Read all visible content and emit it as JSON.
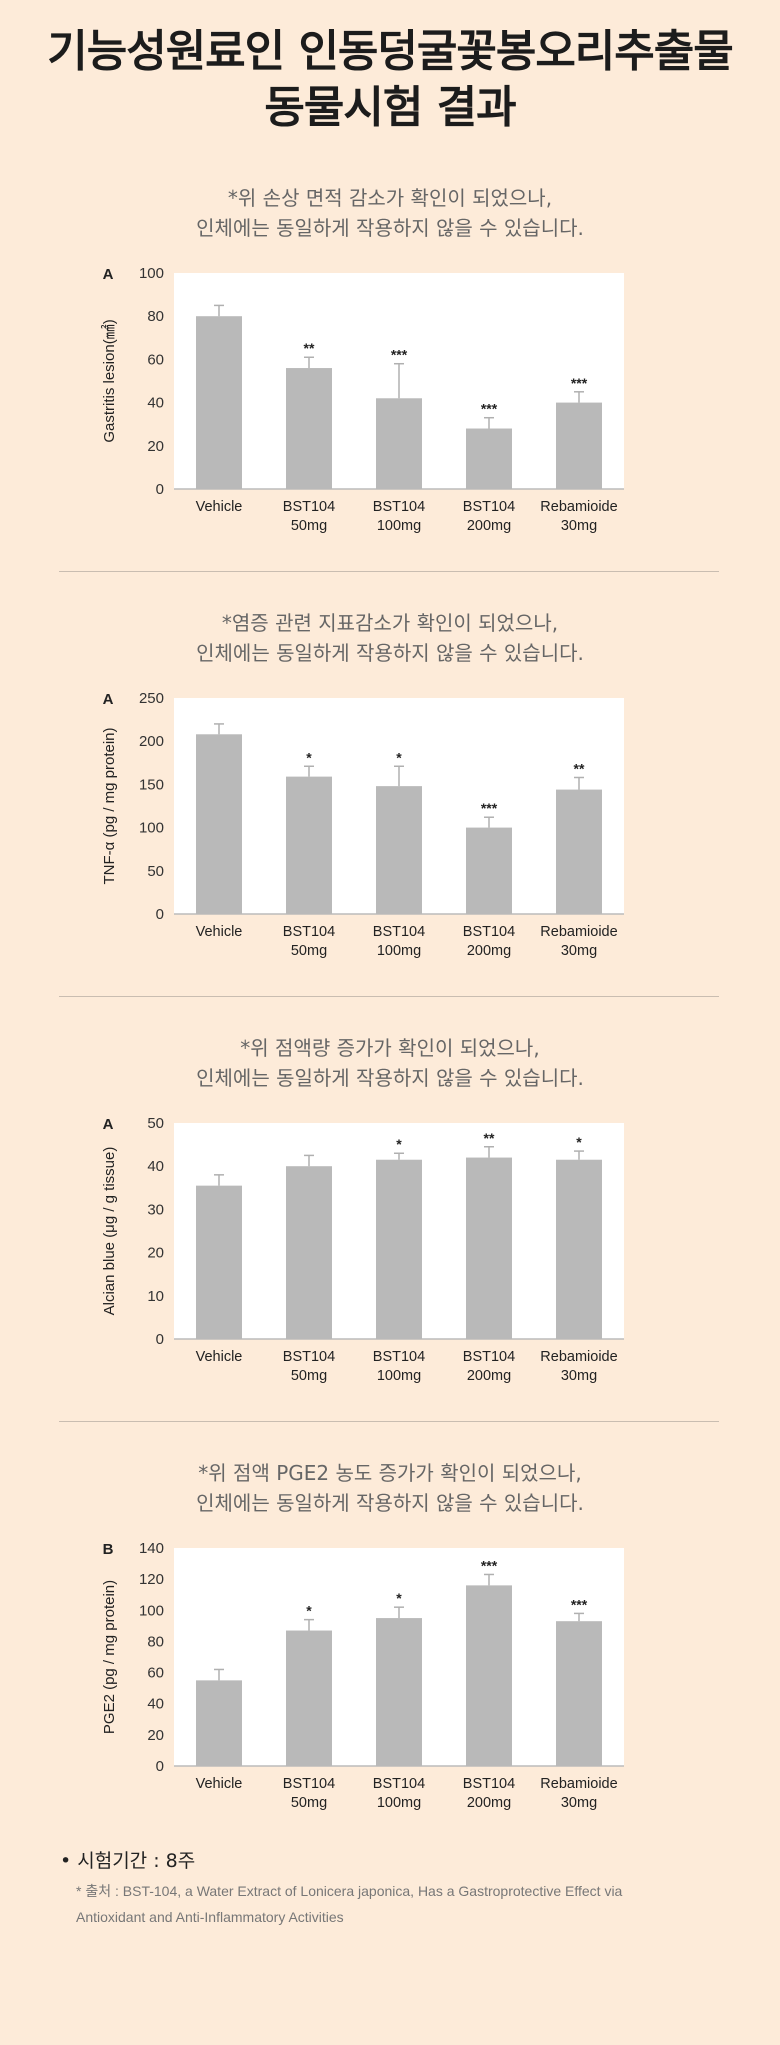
{
  "page": {
    "title_line1": "기능성원료인 인동덩굴꽃봉오리추출물",
    "title_line2": "동물시험 결과"
  },
  "sections": [
    {
      "note_line1": "*위 손상 면적 감소가 확인이 되었으나,",
      "note_line2": "인체에는 동일하게 작용하지 않을 수 있습니다."
    },
    {
      "note_line1": "*염증 관련 지표감소가 확인이 되었으나,",
      "note_line2": "인체에는 동일하게 작용하지 않을 수 있습니다."
    },
    {
      "note_line1": "*위 점액량 증가가 확인이 되었으나,",
      "note_line2": "인체에는 동일하게 작용하지 않을 수 있습니다."
    },
    {
      "note_line1": "*위 점액 PGE2 농도 증가가 확인이 되었으나,",
      "note_line2": "인체에는 동일하게 작용하지 않을 수 있습니다."
    }
  ],
  "chart_data": [
    {
      "type": "bar",
      "panel_label": "A",
      "ylabel": "Gastritis lesion(㎟)",
      "ylim": [
        0,
        100
      ],
      "yticks": [
        0,
        20,
        40,
        60,
        80,
        100
      ],
      "categories": [
        [
          "Vehicle"
        ],
        [
          "BST104",
          "50mg"
        ],
        [
          "BST104",
          "100mg"
        ],
        [
          "BST104",
          "200mg"
        ],
        [
          "Rebamioide",
          "30mg"
        ]
      ],
      "values": [
        80,
        56,
        42,
        28,
        40
      ],
      "errors": [
        5,
        5,
        16,
        5,
        5
      ],
      "significance": [
        "",
        "**",
        "***",
        "***",
        "***"
      ],
      "color": "#b9b9b9"
    },
    {
      "type": "bar",
      "panel_label": "A",
      "ylabel": "TNF-α (pg / mg protein)",
      "ylim": [
        0,
        250
      ],
      "yticks": [
        0,
        50,
        100,
        150,
        200,
        250
      ],
      "categories": [
        [
          "Vehicle"
        ],
        [
          "BST104",
          "50mg"
        ],
        [
          "BST104",
          "100mg"
        ],
        [
          "BST104",
          "200mg"
        ],
        [
          "Rebamioide",
          "30mg"
        ]
      ],
      "values": [
        208,
        159,
        148,
        100,
        144
      ],
      "errors": [
        12,
        12,
        23,
        12,
        14
      ],
      "significance": [
        "",
        "*",
        "*",
        "***",
        "**"
      ],
      "color": "#b9b9b9"
    },
    {
      "type": "bar",
      "panel_label": "A",
      "ylabel": "Alcian blue (μg / g tissue)",
      "ylim": [
        0,
        50
      ],
      "yticks": [
        0,
        10,
        20,
        30,
        40,
        50
      ],
      "categories": [
        [
          "Vehicle"
        ],
        [
          "BST104",
          "50mg"
        ],
        [
          "BST104",
          "100mg"
        ],
        [
          "BST104",
          "200mg"
        ],
        [
          "Rebamioide",
          "30mg"
        ]
      ],
      "values": [
        35.5,
        40,
        41.5,
        42,
        41.5
      ],
      "errors": [
        2.5,
        2.5,
        1.5,
        2.5,
        2
      ],
      "significance": [
        "",
        "",
        "*",
        "**",
        "*"
      ],
      "color": "#b9b9b9"
    },
    {
      "type": "bar",
      "panel_label": "B",
      "ylabel": "PGE2 (pg / mg protein)",
      "ylim": [
        0,
        140
      ],
      "yticks": [
        0,
        20,
        40,
        60,
        80,
        100,
        120,
        140
      ],
      "categories": [
        [
          "Vehicle"
        ],
        [
          "BST104",
          "50mg"
        ],
        [
          "BST104",
          "100mg"
        ],
        [
          "BST104",
          "200mg"
        ],
        [
          "Rebamioide",
          "30mg"
        ]
      ],
      "values": [
        55,
        87,
        95,
        116,
        93
      ],
      "errors": [
        7,
        7,
        7,
        7,
        5
      ],
      "significance": [
        "",
        "*",
        "*",
        "***",
        "***"
      ],
      "color": "#b9b9b9"
    }
  ],
  "footer": {
    "period": "• 시험기간 : 8주",
    "source_line1": "* 출처 : BST-104, a Water Extract of Lonicera japonica, Has a Gastroprotective Effect via",
    "source_line2": "Antioxidant and Anti-Inflammatory Activities"
  }
}
